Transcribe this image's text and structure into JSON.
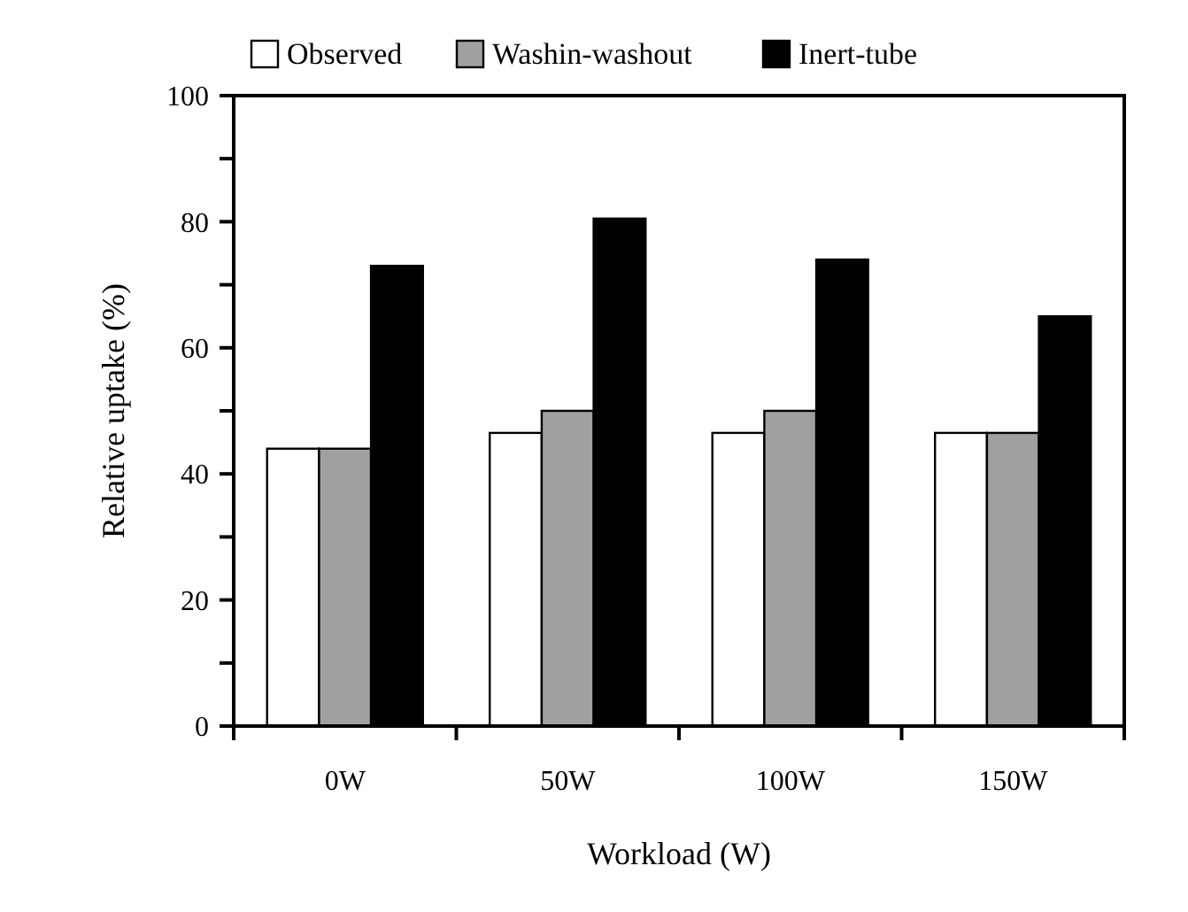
{
  "chart_data": {
    "type": "bar",
    "xlabel": "Workload (W)",
    "ylabel": "Relative uptake (%)",
    "categories": [
      "0W",
      "50W",
      "100W",
      "150W"
    ],
    "series": [
      {
        "name": "Observed",
        "color": "#ffffff",
        "values": [
          44,
          46.5,
          46.5,
          46.5
        ]
      },
      {
        "name": "Washin-washout",
        "color": "#a0a0a0",
        "values": [
          44,
          50,
          50,
          46.5
        ]
      },
      {
        "name": "Inert-tube",
        "color": "#000000",
        "values": [
          73,
          80.5,
          74,
          65
        ]
      }
    ],
    "ylim": [
      0,
      100
    ],
    "yticks": [
      0,
      {
        "value": 10,
        "label": null
      },
      20,
      {
        "value": 30,
        "label": null
      },
      40,
      {
        "value": 50,
        "label": null
      },
      60,
      {
        "value": 70,
        "label": null
      },
      80,
      {
        "value": 90,
        "label": null
      },
      100
    ],
    "grid": false,
    "legend": "top"
  }
}
